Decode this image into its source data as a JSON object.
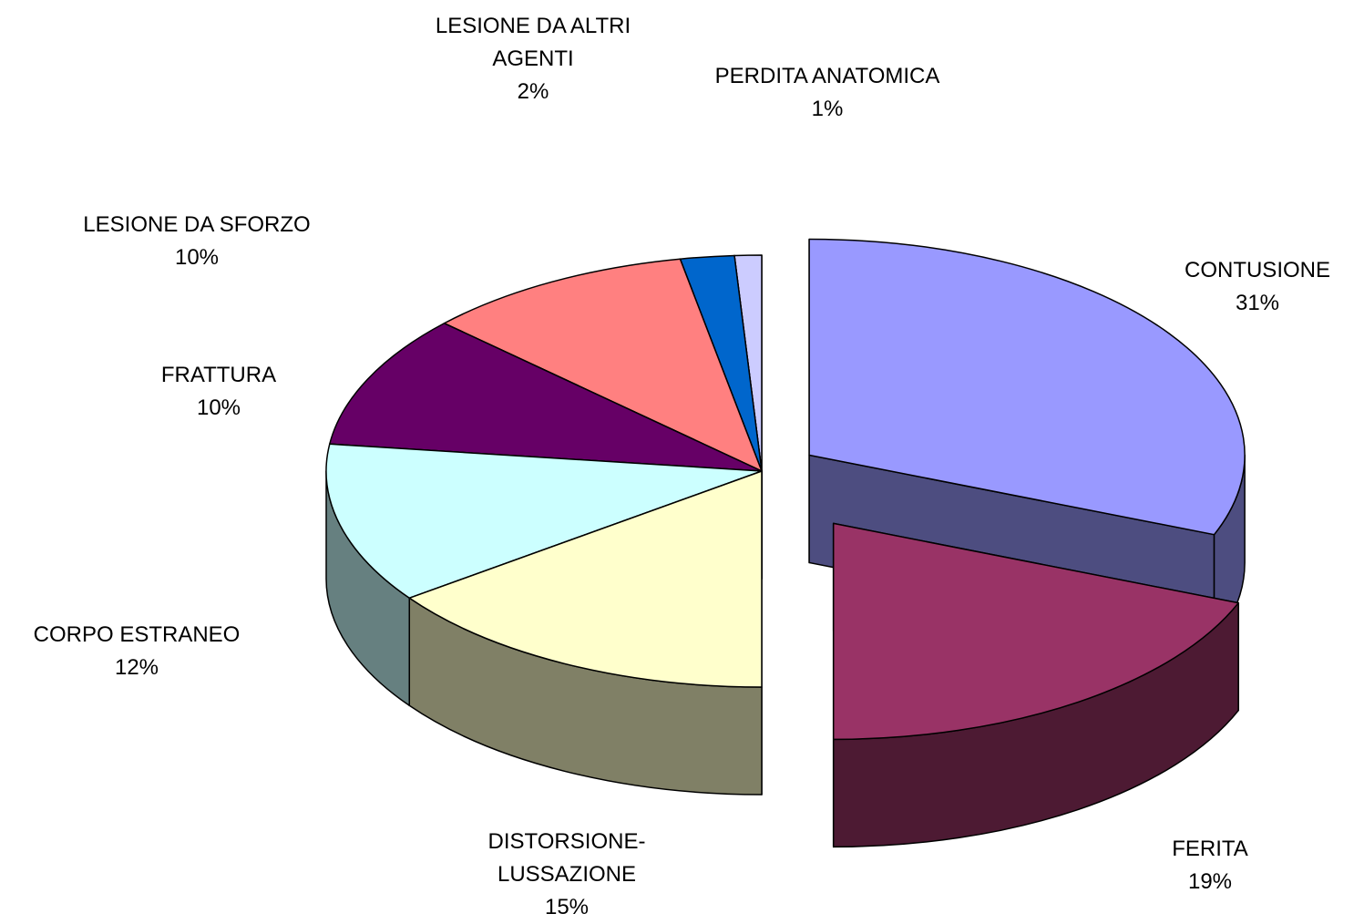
{
  "chart_data": {
    "type": "pie",
    "categories": [
      "CONTUSIONE",
      "FERITA",
      "DISTORSIONE-LUSSAZIONE",
      "CORPO ESTRANEO",
      "FRATTURA",
      "LESIONE DA SFORZO",
      "LESIONE DA ALTRI AGENTI",
      "PERDITA ANATOMICA"
    ],
    "values": [
      31,
      19,
      15,
      12,
      10,
      10,
      2,
      1
    ],
    "value_labels": [
      "31%",
      "19%",
      "15%",
      "12%",
      "10%",
      "10%",
      "2%",
      "1%"
    ],
    "colors": [
      "#9999ff",
      "#993366",
      "#ffffcc",
      "#ccffff",
      "#660066",
      "#ff8080",
      "#0066cc",
      "#ccccff"
    ]
  }
}
